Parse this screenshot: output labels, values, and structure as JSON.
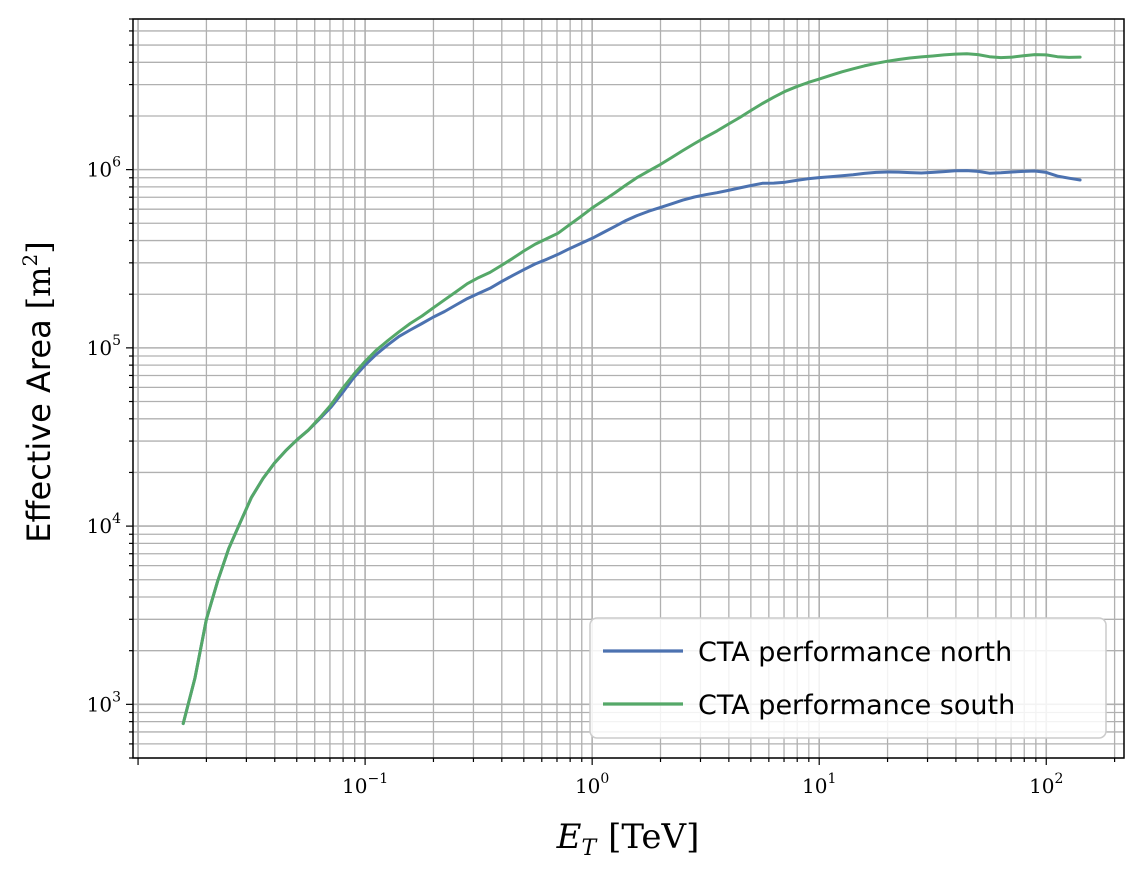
{
  "chart_data": {
    "type": "line",
    "title": "",
    "xlabel": {
      "main": "E",
      "sub": "T",
      "unit": "[TeV]"
    },
    "ylabel": {
      "text": "Effective Area",
      "unit_open": "[m",
      "unit_sup": "2",
      "unit_close": "]"
    },
    "xscale": "log",
    "yscale": "log",
    "xlim": [
      0.0095,
      220
    ],
    "ylim": [
      500,
      7000000
    ],
    "grid": "major and minor",
    "legend_position": "lower-right",
    "x_ticks": [
      {
        "base": "10",
        "exp": "−1",
        "value": 0.1
      },
      {
        "base": "10",
        "exp": "0",
        "value": 1
      },
      {
        "base": "10",
        "exp": "1",
        "value": 10
      },
      {
        "base": "10",
        "exp": "2",
        "value": 100
      }
    ],
    "y_ticks": [
      {
        "base": "10",
        "exp": "3",
        "value": 1000
      },
      {
        "base": "10",
        "exp": "4",
        "value": 10000
      },
      {
        "base": "10",
        "exp": "5",
        "value": 100000
      },
      {
        "base": "10",
        "exp": "6",
        "value": 1000000
      }
    ],
    "series": [
      {
        "name": "CTA performance north",
        "color": "#4c72b0",
        "x": [
          0.0158,
          0.0178,
          0.02,
          0.0224,
          0.0251,
          0.0282,
          0.0316,
          0.0355,
          0.0398,
          0.0447,
          0.0501,
          0.0562,
          0.0631,
          0.0708,
          0.0794,
          0.0891,
          0.1,
          0.112,
          0.126,
          0.141,
          0.158,
          0.178,
          0.2,
          0.224,
          0.251,
          0.282,
          0.316,
          0.355,
          0.398,
          0.447,
          0.501,
          0.562,
          0.631,
          0.708,
          0.794,
          0.891,
          1,
          1.12,
          1.26,
          1.41,
          1.58,
          1.78,
          2,
          2.24,
          2.51,
          2.82,
          3.16,
          3.55,
          3.98,
          4.47,
          5.01,
          5.62,
          6.31,
          7.08,
          7.94,
          8.91,
          10,
          11.2,
          12.6,
          14.1,
          15.8,
          17.8,
          20,
          22.4,
          25.1,
          28.2,
          31.6,
          35.5,
          39.8,
          44.7,
          50.1,
          56.2,
          63.1,
          70.8,
          79.4,
          89.1,
          100,
          112,
          126,
          141
        ],
        "y": [
          780,
          1400,
          3000,
          4900,
          7500,
          10500,
          14500,
          18500,
          22500,
          26500,
          30500,
          34500,
          40000,
          46500,
          56000,
          68000,
          80000,
          92000,
          104000,
          116000,
          126000,
          137000,
          149000,
          160000,
          174000,
          189000,
          202000,
          216000,
          235000,
          255000,
          275000,
          296000,
          314000,
          335000,
          360000,
          385000,
          412000,
          444000,
          480000,
          518000,
          553000,
          585000,
          614000,
          643000,
          675000,
          702000,
          723000,
          742000,
          765000,
          790000,
          815000,
          838000,
          840000,
          850000,
          870000,
          888000,
          902000,
          913000,
          923000,
          935000,
          952000,
          965000,
          970000,
          968000,
          962000,
          958000,
          965000,
          975000,
          985000,
          988000,
          978000,
          955000,
          960000,
          970000,
          978000,
          982000,
          965000,
          920000,
          895000,
          875000
        ]
      },
      {
        "name": "CTA performance south",
        "color": "#55a868",
        "x": [
          0.0158,
          0.0178,
          0.02,
          0.0224,
          0.0251,
          0.0282,
          0.0316,
          0.0355,
          0.0398,
          0.0447,
          0.0501,
          0.0562,
          0.0631,
          0.0708,
          0.0794,
          0.0891,
          0.1,
          0.112,
          0.126,
          0.141,
          0.158,
          0.178,
          0.2,
          0.224,
          0.251,
          0.282,
          0.316,
          0.355,
          0.398,
          0.447,
          0.501,
          0.562,
          0.631,
          0.708,
          0.794,
          0.891,
          1,
          1.12,
          1.26,
          1.41,
          1.58,
          1.78,
          2,
          2.24,
          2.51,
          2.82,
          3.16,
          3.55,
          3.98,
          4.47,
          5.01,
          5.62,
          6.31,
          7.08,
          7.94,
          8.91,
          10,
          11.2,
          12.6,
          14.1,
          15.8,
          17.8,
          20,
          22.4,
          25.1,
          28.2,
          31.6,
          35.5,
          39.8,
          44.7,
          50.1,
          56.2,
          63.1,
          70.8,
          79.4,
          89.1,
          100,
          112,
          126,
          141
        ],
        "y": [
          780,
          1400,
          3000,
          4900,
          7500,
          10500,
          14500,
          18500,
          22500,
          26500,
          30500,
          34500,
          40500,
          48000,
          59000,
          71000,
          84000,
          97000,
          110000,
          123000,
          137000,
          151000,
          168000,
          186000,
          206000,
          229000,
          248000,
          265000,
          290000,
          318000,
          350000,
          382000,
          410000,
          440000,
          490000,
          545000,
          610000,
          670000,
          740000,
          820000,
          905000,
          985000,
          1070000,
          1170000,
          1280000,
          1400000,
          1520000,
          1650000,
          1800000,
          1960000,
          2150000,
          2350000,
          2550000,
          2750000,
          2920000,
          3080000,
          3220000,
          3380000,
          3540000,
          3680000,
          3820000,
          3950000,
          4060000,
          4150000,
          4230000,
          4290000,
          4340000,
          4400000,
          4450000,
          4470000,
          4420000,
          4300000,
          4250000,
          4280000,
          4350000,
          4420000,
          4400000,
          4300000,
          4260000,
          4280000
        ]
      }
    ]
  }
}
